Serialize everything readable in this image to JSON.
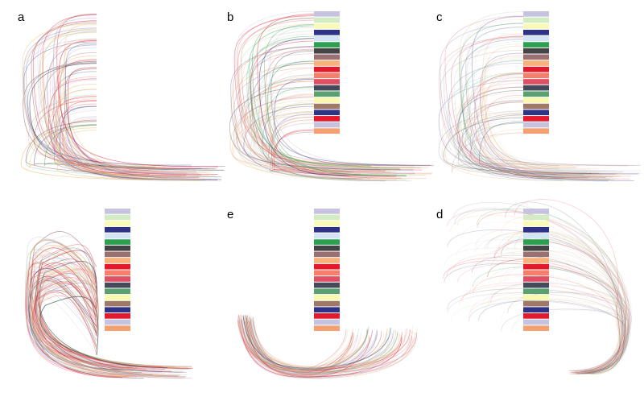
{
  "panels": [
    {
      "label": "a"
    },
    {
      "label": "b"
    },
    {
      "label": "c"
    },
    {
      "label": null
    },
    {
      "label": "e"
    },
    {
      "label": "d"
    }
  ]
}
